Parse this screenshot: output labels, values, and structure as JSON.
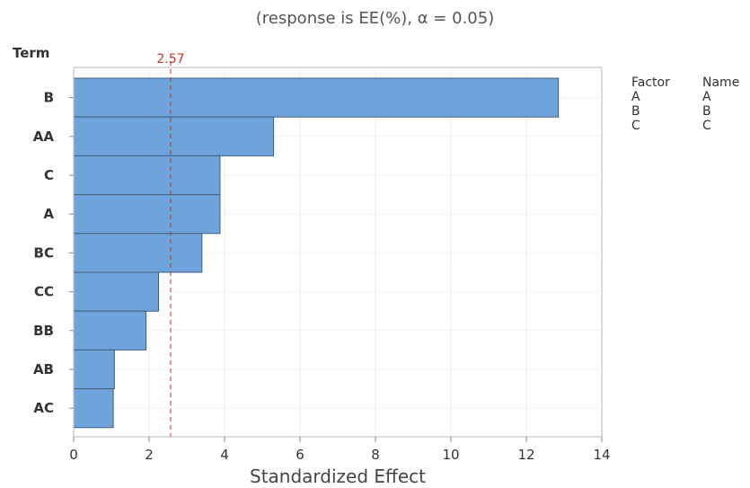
{
  "chart_data": {
    "type": "bar",
    "orientation": "horizontal",
    "subtitle": "(response is EE(%), α = 0.05)",
    "ylabel": "Term",
    "xlabel": "Standardized Effect",
    "categories": [
      "B",
      "AA",
      "C",
      "A",
      "BC",
      "CC",
      "BB",
      "AB",
      "AC"
    ],
    "values": [
      12.85,
      5.3,
      3.88,
      3.88,
      3.4,
      2.25,
      1.92,
      1.08,
      1.05
    ],
    "xlim": [
      0,
      14
    ],
    "xticks": [
      0,
      2,
      4,
      6,
      8,
      10,
      12,
      14
    ],
    "reference_line": {
      "value": 2.57,
      "label": "2.57",
      "color": "#c0392b"
    },
    "bar_color": "#6fa3dc",
    "grid": true,
    "legend": {
      "placement": "right",
      "headers": [
        "Factor",
        "Name"
      ],
      "rows": [
        [
          "A",
          "A"
        ],
        [
          "B",
          "B"
        ],
        [
          "C",
          "C"
        ]
      ]
    }
  }
}
